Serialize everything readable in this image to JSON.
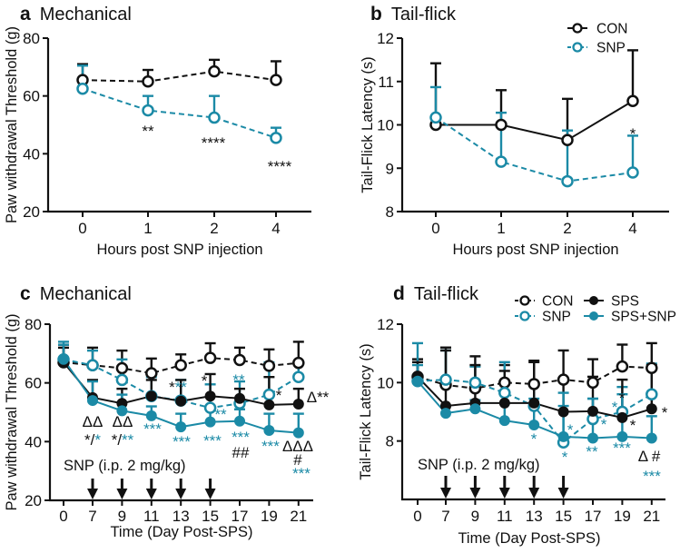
{
  "colors": {
    "black": "#111111",
    "teal": "#1b8aa6"
  },
  "chart_data": [
    {
      "panel": "a",
      "title": "Mechanical",
      "type": "line",
      "xlabel": "Hours post SNP injection",
      "ylabel": "Paw withdrawal Threshold (g)",
      "x": [
        "0",
        "1",
        "2",
        "4"
      ],
      "ylim": [
        20,
        80
      ],
      "yticks": [
        "20",
        "40",
        "60",
        "80"
      ],
      "series": [
        {
          "name": "CON",
          "style": "dashed",
          "marker": "open",
          "color": "black",
          "values": [
            65.5,
            65,
            68.5,
            65.5
          ],
          "err_upper": [
            71,
            69,
            72.5,
            72
          ]
        },
        {
          "name": "SNP",
          "style": "dashed",
          "marker": "open",
          "color": "teal",
          "values": [
            62.5,
            55,
            52.5,
            45.5
          ],
          "err_upper": [
            70.5,
            60,
            60,
            49
          ]
        }
      ],
      "annotations": [
        {
          "parts": [
            {
              "t": "**",
              "c": "black"
            }
          ]
        },
        {
          "parts": [
            {
              "t": "****",
              "c": "black"
            }
          ]
        },
        {
          "parts": [
            {
              "t": "****",
              "c": "black"
            }
          ]
        }
      ]
    },
    {
      "panel": "b",
      "title": "Tail-flick",
      "type": "line",
      "xlabel": "Hours post SNP injection",
      "ylabel": "Tail-Flick Latency (s)",
      "x": [
        "0",
        "1",
        "2",
        "4"
      ],
      "ylim": [
        8,
        12
      ],
      "yticks": [
        "8",
        "9",
        "10",
        "11",
        "12"
      ],
      "legend": {
        "placement": "top-right",
        "entries": [
          "CON",
          "SNP"
        ]
      },
      "series": [
        {
          "name": "CON",
          "style": "solid",
          "marker": "open",
          "color": "black",
          "values": [
            10.0,
            10.0,
            9.65,
            10.55
          ],
          "err_upper": [
            11.42,
            10.8,
            10.6,
            11.72
          ]
        },
        {
          "name": "SNP",
          "style": "dashed",
          "marker": "open",
          "color": "teal",
          "values": [
            10.17,
            9.15,
            8.7,
            8.9
          ],
          "err_upper": [
            10.87,
            10.28,
            9.87,
            9.75
          ]
        }
      ],
      "annotations": [
        {
          "parts": [
            {
              "t": "*",
              "c": "black"
            }
          ]
        }
      ]
    },
    {
      "panel": "c",
      "title": "Mechanical",
      "type": "line",
      "xlabel": "Time (Day Post-SPS)",
      "ylabel": "Paw withdrawal Threshold (g)",
      "x": [
        "0",
        "7",
        "9",
        "11",
        "13",
        "15",
        "17",
        "19",
        "21"
      ],
      "ylim": [
        20,
        80
      ],
      "yticks": [
        "20",
        "40",
        "60",
        "80"
      ],
      "injection_label": "SNP (i.p. 2 mg/kg)",
      "injection_days": [
        "7",
        "9",
        "11",
        "13",
        "15"
      ],
      "series": [
        {
          "name": "CON",
          "style": "dashed",
          "marker": "open",
          "color": "black",
          "values": [
            67,
            66,
            65,
            63.3,
            66,
            68.5,
            67.8,
            65.8,
            66.8
          ],
          "err_upper": [
            73,
            72,
            71,
            68.3,
            69.7,
            73.5,
            72,
            71.4,
            74
          ]
        },
        {
          "name": "SNP",
          "style": "dashed",
          "marker": "open",
          "color": "teal",
          "values": [
            68,
            66,
            61,
            55.5,
            54,
            51.5,
            53,
            56,
            62
          ],
          "err_upper": [
            74,
            71,
            68,
            62,
            61,
            59.5,
            60.5,
            67,
            67
          ]
        },
        {
          "name": "SPS",
          "style": "solid",
          "marker": "filled",
          "color": "black",
          "values": [
            67,
            55,
            53,
            55.5,
            53.8,
            55.5,
            54.7,
            52.5,
            52.8
          ],
          "err_upper": [
            72,
            61,
            58,
            61,
            61,
            63,
            58,
            62,
            58
          ]
        },
        {
          "name": "SPS+SNP",
          "style": "solid",
          "marker": "filled",
          "color": "teal",
          "values": [
            68,
            54,
            50.5,
            48.8,
            45,
            46.7,
            47,
            43.8,
            43
          ],
          "err_upper": [
            73,
            60.5,
            56,
            52,
            49.5,
            51,
            51,
            49.5,
            49.5
          ]
        }
      ],
      "annotations": [
        {
          "parts": [
            {
              "t": "ΔΔ",
              "c": "black"
            }
          ]
        },
        {
          "parts": [
            {
              "t": "*/",
              "c": "black"
            },
            {
              "t": "*",
              "c": "teal"
            }
          ]
        },
        {
          "parts": [
            {
              "t": "ΔΔ",
              "c": "black"
            }
          ]
        },
        {
          "parts": [
            {
              "t": "*/",
              "c": "black"
            },
            {
              "t": "**",
              "c": "teal"
            }
          ]
        },
        {
          "parts": [
            {
              "t": "***",
              "c": "teal"
            }
          ]
        },
        {
          "parts": [
            {
              "t": "***",
              "c": "teal"
            }
          ]
        },
        {
          "parts": [
            {
              "t": "*",
              "c": "black"
            },
            {
              "t": "**",
              "c": "teal"
            }
          ]
        },
        {
          "parts": [
            {
              "t": "*",
              "c": "black"
            }
          ]
        },
        {
          "parts": [
            {
              "t": "**",
              "c": "teal"
            }
          ]
        },
        {
          "parts": [
            {
              "t": "***",
              "c": "teal"
            }
          ]
        },
        {
          "parts": [
            {
              "t": "**",
              "c": "teal"
            }
          ]
        },
        {
          "parts": [
            {
              "t": "***",
              "c": "teal"
            }
          ]
        },
        {
          "parts": [
            {
              "t": "##",
              "c": "black"
            }
          ]
        },
        {
          "parts": [
            {
              "t": "***",
              "c": "teal"
            }
          ]
        },
        {
          "parts": [
            {
              "t": "*",
              "c": "black"
            }
          ]
        },
        {
          "parts": [
            {
              "t": "ΔΔΔ",
              "c": "black"
            }
          ]
        },
        {
          "parts": [
            {
              "t": "#",
              "c": "black"
            }
          ]
        },
        {
          "parts": [
            {
              "t": "***",
              "c": "teal"
            }
          ]
        },
        {
          "parts": [
            {
              "t": "Δ",
              "c": "black"
            },
            {
              "t": "**",
              "c": "black"
            }
          ]
        }
      ]
    },
    {
      "panel": "d",
      "title": "Tail-flick",
      "type": "line",
      "xlabel": "Time (Day Post-SPS)",
      "ylabel": "Tail-Flick Latency (s)",
      "x": [
        "0",
        "7",
        "9",
        "11",
        "13",
        "15",
        "17",
        "19",
        "21"
      ],
      "ylim": [
        6,
        12
      ],
      "yticks": [
        "8",
        "10",
        "12"
      ],
      "injection_label": "SNP (i.p. 2 mg/kg)",
      "injection_days": [
        "7",
        "9",
        "11",
        "13",
        "15"
      ],
      "legend": {
        "placement": "top-right",
        "entries": [
          "CON",
          "SNP",
          "SPS",
          "SPS+SNP"
        ]
      },
      "series": [
        {
          "name": "CON",
          "style": "dashed",
          "marker": "open",
          "color": "black",
          "values": [
            10.2,
            9.92,
            9.8,
            10.0,
            9.95,
            10.1,
            10.0,
            10.55,
            10.5
          ],
          "err_upper": [
            10.8,
            11.2,
            10.9,
            10.6,
            10.75,
            11.1,
            10.8,
            11.3,
            11.35
          ]
        },
        {
          "name": "SNP",
          "style": "dashed",
          "marker": "open",
          "color": "teal",
          "values": [
            10.05,
            10.1,
            10.0,
            9.65,
            9.2,
            7.95,
            8.75,
            9.0,
            9.6
          ],
          "err_upper": [
            11.35,
            11.1,
            10.55,
            10.7,
            10.0,
            9.2,
            9.45,
            9.85,
            10.65
          ]
        },
        {
          "name": "SPS",
          "style": "solid",
          "marker": "filled",
          "color": "black",
          "values": [
            10.2,
            9.2,
            9.3,
            9.3,
            9.3,
            9.0,
            9.02,
            8.8,
            9.1
          ],
          "err_upper": [
            10.7,
            11.1,
            10.6,
            10.4,
            10.7,
            10.1,
            10.2,
            10.1,
            10.6
          ]
        },
        {
          "name": "SPS+SNP",
          "style": "solid",
          "marker": "filled",
          "color": "teal",
          "values": [
            10.05,
            8.95,
            9.1,
            8.7,
            8.55,
            8.15,
            8.1,
            8.15,
            8.1
          ],
          "err_upper": [
            10.6,
            9.2,
            9.4,
            9.3,
            9.45,
            9.65,
            9.45,
            9.6,
            8.85
          ]
        }
      ],
      "annotations": [
        {
          "parts": [
            {
              "t": "*",
              "c": "teal"
            }
          ]
        },
        {
          "parts": [
            {
              "t": "*",
              "c": "teal"
            }
          ]
        },
        {
          "parts": [
            {
              "t": "*",
              "c": "teal"
            }
          ]
        },
        {
          "parts": [
            {
              "t": "*",
              "c": "teal"
            }
          ]
        },
        {
          "parts": [
            {
              "t": "**",
              "c": "teal"
            }
          ]
        },
        {
          "parts": [
            {
              "t": "***",
              "c": "teal"
            }
          ]
        },
        {
          "parts": [
            {
              "t": "*",
              "c": "teal"
            }
          ]
        },
        {
          "parts": [
            {
              "t": "*",
              "c": "black"
            }
          ]
        },
        {
          "parts": [
            {
              "t": "*",
              "c": "black"
            }
          ]
        },
        {
          "parts": [
            {
              "t": "*",
              "c": "black"
            }
          ]
        },
        {
          "parts": [
            {
              "t": "Δ #",
              "c": "black"
            }
          ]
        },
        {
          "parts": [
            {
              "t": "***",
              "c": "teal"
            }
          ]
        }
      ]
    }
  ]
}
